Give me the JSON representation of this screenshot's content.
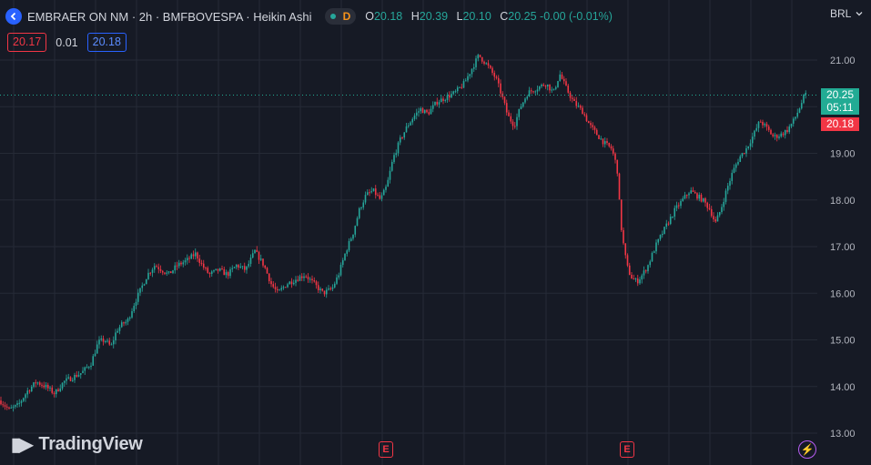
{
  "header": {
    "title": "EMBRAER ON NM · 2h · BMFBOVESPA · Heikin Ashi",
    "status_label": "D",
    "ohlc": [
      {
        "k": "O",
        "v": "20.18"
      },
      {
        "k": "H",
        "v": "20.39"
      },
      {
        "k": "L",
        "v": "20.10"
      },
      {
        "k": "C",
        "v": "20.25 -0.00 (-0.01%)"
      }
    ]
  },
  "quote": {
    "bid": "20.17",
    "spread": "0.01",
    "ask": "20.18"
  },
  "currency": {
    "label": "BRL"
  },
  "price_tag": {
    "price": "20.25",
    "countdown": "05:11",
    "low": "20.18"
  },
  "events": [
    {
      "label": "E"
    },
    {
      "label": "E"
    }
  ],
  "branding": {
    "name": "TradingView"
  },
  "colors": {
    "up": "#26a69a",
    "down": "#f23645",
    "bg": "#161a25",
    "grid": "#252a36",
    "accent": "#2962ff"
  },
  "icons": {
    "logo": "arrow-left-icon",
    "currency": "chevron-down-icon",
    "bolt": "lightning-icon"
  },
  "chart_data": {
    "type": "candlestick",
    "style": "Heikin Ashi",
    "symbol": "EMBRAER ON NM",
    "interval": "2h",
    "exchange": "BMFBOVESPA",
    "ylim": [
      12.8,
      21.4
    ],
    "yticks": [
      "13.00",
      "14.00",
      "15.00",
      "16.00",
      "17.00",
      "18.00",
      "19.00",
      "20.00",
      "21.00"
    ],
    "last_price": 20.25,
    "grid": true,
    "close_path": [
      [
        0,
        13.7
      ],
      [
        10,
        13.5
      ],
      [
        20,
        13.6
      ],
      [
        30,
        13.9
      ],
      [
        40,
        14.1
      ],
      [
        50,
        14.0
      ],
      [
        60,
        13.85
      ],
      [
        70,
        14.1
      ],
      [
        80,
        14.2
      ],
      [
        90,
        14.3
      ],
      [
        100,
        14.5
      ],
      [
        108,
        14.95
      ],
      [
        115,
        15.0
      ],
      [
        122,
        14.85
      ],
      [
        128,
        15.2
      ],
      [
        135,
        15.35
      ],
      [
        140,
        15.4
      ],
      [
        148,
        15.8
      ],
      [
        155,
        16.1
      ],
      [
        162,
        16.4
      ],
      [
        170,
        16.6
      ],
      [
        178,
        16.5
      ],
      [
        185,
        16.4
      ],
      [
        195,
        16.6
      ],
      [
        205,
        16.7
      ],
      [
        215,
        16.85
      ],
      [
        222,
        16.6
      ],
      [
        230,
        16.4
      ],
      [
        240,
        16.5
      ],
      [
        250,
        16.4
      ],
      [
        260,
        16.6
      ],
      [
        270,
        16.5
      ],
      [
        280,
        16.9
      ],
      [
        290,
        16.6
      ],
      [
        298,
        16.2
      ],
      [
        305,
        16.0
      ],
      [
        315,
        16.2
      ],
      [
        325,
        16.3
      ],
      [
        335,
        16.4
      ],
      [
        345,
        16.2
      ],
      [
        355,
        16.0
      ],
      [
        365,
        16.1
      ],
      [
        372,
        16.4
      ],
      [
        380,
        16.9
      ],
      [
        388,
        17.3
      ],
      [
        395,
        17.8
      ],
      [
        402,
        18.1
      ],
      [
        410,
        18.2
      ],
      [
        418,
        18.0
      ],
      [
        425,
        18.3
      ],
      [
        432,
        18.9
      ],
      [
        440,
        19.3
      ],
      [
        448,
        19.6
      ],
      [
        455,
        19.8
      ],
      [
        462,
        19.95
      ],
      [
        470,
        19.85
      ],
      [
        480,
        20.1
      ],
      [
        490,
        20.2
      ],
      [
        500,
        20.3
      ],
      [
        510,
        20.5
      ],
      [
        518,
        20.8
      ],
      [
        526,
        21.1
      ],
      [
        535,
        20.9
      ],
      [
        545,
        20.6
      ],
      [
        552,
        20.2
      ],
      [
        558,
        19.8
      ],
      [
        565,
        19.6
      ],
      [
        572,
        20.0
      ],
      [
        580,
        20.3
      ],
      [
        590,
        20.4
      ],
      [
        600,
        20.5
      ],
      [
        608,
        20.3
      ],
      [
        615,
        20.7
      ],
      [
        622,
        20.4
      ],
      [
        630,
        20.1
      ],
      [
        640,
        19.9
      ],
      [
        648,
        19.6
      ],
      [
        656,
        19.4
      ],
      [
        665,
        19.2
      ],
      [
        672,
        19.1
      ],
      [
        678,
        18.7
      ],
      [
        682,
        17.5
      ],
      [
        686,
        16.9
      ],
      [
        690,
        16.5
      ],
      [
        695,
        16.3
      ],
      [
        700,
        16.25
      ],
      [
        706,
        16.4
      ],
      [
        712,
        16.6
      ],
      [
        720,
        17.0
      ],
      [
        728,
        17.3
      ],
      [
        735,
        17.55
      ],
      [
        742,
        17.8
      ],
      [
        750,
        18.0
      ],
      [
        758,
        18.2
      ],
      [
        765,
        18.1
      ],
      [
        772,
        18.0
      ],
      [
        780,
        17.8
      ],
      [
        786,
        17.5
      ],
      [
        792,
        17.8
      ],
      [
        798,
        18.2
      ],
      [
        805,
        18.6
      ],
      [
        812,
        18.9
      ],
      [
        820,
        19.1
      ],
      [
        828,
        19.4
      ],
      [
        835,
        19.7
      ],
      [
        842,
        19.55
      ],
      [
        850,
        19.35
      ],
      [
        858,
        19.4
      ],
      [
        865,
        19.5
      ],
      [
        872,
        19.7
      ],
      [
        878,
        19.95
      ],
      [
        884,
        20.25
      ]
    ]
  }
}
